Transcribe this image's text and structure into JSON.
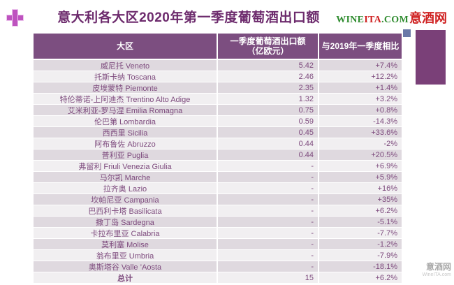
{
  "colors": {
    "header-bg": "#7C4E80",
    "row-odd": "#DFD9DF",
    "row-even": "#F1EFF1",
    "row-text": "#7D4A7D",
    "title-text": "#6D2B6D",
    "logo-green": "#2E8B2E",
    "logo-red": "#CF2121",
    "plus-pink": "#BE53BF",
    "plus-halo": "#EDC6EE",
    "deco-rect": "#7A4078",
    "deco-square": "#6A79A8",
    "watermark-gray": "#A8A8A8",
    "watermark-light": "#C8C8C8"
  },
  "header": {
    "title": "意大利各大区2020年第一季度葡萄酒出口额",
    "logo": {
      "part_green1": "WINE",
      "part_red1": "ITA",
      "part_green2": ".COM",
      "part_cn": "意酒网"
    }
  },
  "table": {
    "columns": [
      {
        "label": "大区"
      },
      {
        "label": "一季度葡萄酒出口额",
        "sub": "（亿欧元）"
      },
      {
        "label": "与2019年一季度相比"
      }
    ]
  },
  "chart_data": {
    "type": "table",
    "title": "意大利各大区2020年第一季度葡萄酒出口额",
    "columns": [
      "大区",
      "一季度葡萄酒出口额（亿欧元）",
      "与2019年一季度相比"
    ],
    "rows": [
      [
        "威尼托 Veneto",
        "5.42",
        "+7.4%"
      ],
      [
        "托斯卡纳 Toscana",
        "2.46",
        "+12.2%"
      ],
      [
        "皮埃蒙特 Piemonte",
        "2.35",
        "+1.4%"
      ],
      [
        "特伦蒂诺-上阿迪杰 Trentino Alto Adige",
        "1.32",
        "+3.2%"
      ],
      [
        "艾米利亚-罗马涅 Emilia Romagna",
        "0.75",
        "+0.8%"
      ],
      [
        "伦巴第 Lombardia",
        "0.59",
        "-14.3%"
      ],
      [
        "西西里 Sicilia",
        "0.45",
        "+33.6%"
      ],
      [
        "阿布鲁佐 Abruzzo",
        "0.44",
        "-2%"
      ],
      [
        "普利亚 Puglia",
        "0.44",
        "+20.5%"
      ],
      [
        "弗留利 Friuli Venezia Giulia",
        "-",
        "+6.9%"
      ],
      [
        "马尔凯 Marche",
        "-",
        "+5.9%"
      ],
      [
        "拉齐奥 Lazio",
        "-",
        "+16%"
      ],
      [
        "坎帕尼亚 Campania",
        "-",
        "+35%"
      ],
      [
        "巴西利卡塔 Basilicata",
        "-",
        "+6.2%"
      ],
      [
        "撒丁岛 Sardegna",
        "-",
        "-5.1%"
      ],
      [
        "卡拉布里亚 Calabria",
        "-",
        "-7.7%"
      ],
      [
        "莫利塞 Molise",
        "-",
        "-1.2%"
      ],
      [
        "翁布里亚 Umbria",
        "-",
        "-7.9%"
      ],
      [
        "奥斯塔谷 Valle ’Aosta",
        "-",
        "-18.1%"
      ]
    ],
    "total_row": [
      "总计",
      "15",
      "+6.2%"
    ]
  },
  "watermark": {
    "line1": "意酒网",
    "line2": "WineITA.com"
  }
}
